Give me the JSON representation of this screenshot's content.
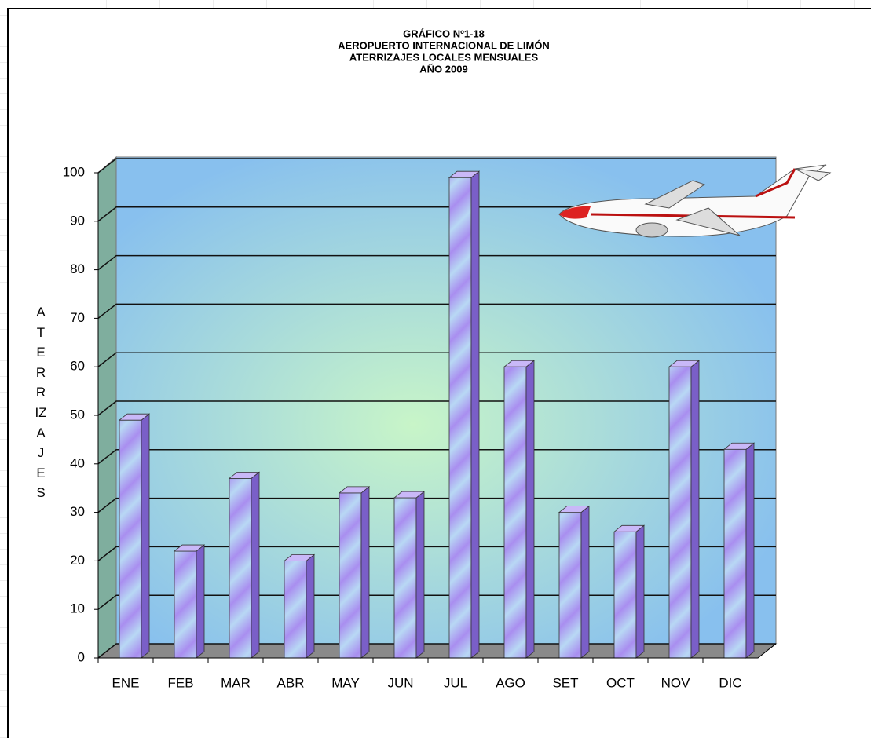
{
  "chart_data": {
    "type": "bar",
    "title": [
      "GRÁFICO Nº1-18",
      "AEROPUERTO INTERNACIONAL DE LIMÓN",
      "ATERRIZAJES LOCALES MENSUALES",
      "AÑO 2009"
    ],
    "y_label": "ATERRIZAJES",
    "categories": [
      "ENE",
      "FEB",
      "MAR",
      "ABR",
      "MAY",
      "JUN",
      "JUL",
      "AGO",
      "SET",
      "OCT",
      "NOV",
      "DIC"
    ],
    "values": [
      49,
      22,
      37,
      20,
      34,
      33,
      99,
      60,
      30,
      26,
      60,
      43
    ],
    "color": "#a98ef0",
    "ylim": [
      0,
      100
    ],
    "yticks": [
      0,
      10,
      20,
      30,
      40,
      50,
      60,
      70,
      80,
      90,
      100
    ],
    "grid": true
  }
}
